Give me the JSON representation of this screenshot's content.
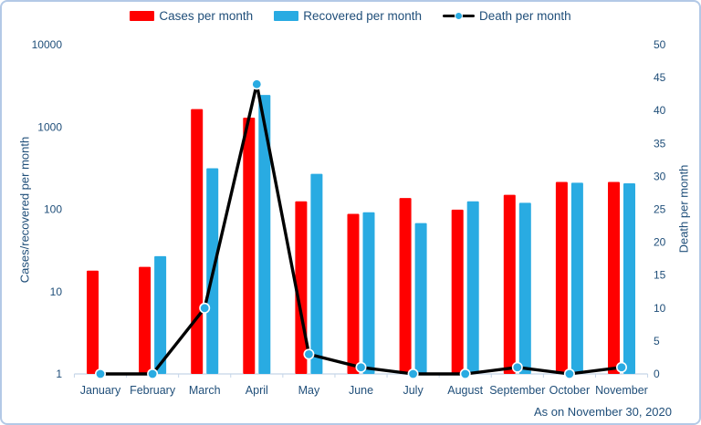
{
  "legend": {
    "items": [
      {
        "label": "Cases per month",
        "swatch": "bar",
        "color": "#ff0000"
      },
      {
        "label": "Recovered per month",
        "swatch": "bar",
        "color": "#29abe2"
      },
      {
        "label": "Death per month",
        "swatch": "line-dot",
        "color": "#000000",
        "dot_color": "#29abe2"
      }
    ]
  },
  "left_axis": {
    "label": "Cases/recovered per month",
    "scale": "log",
    "ticks": [
      1,
      10,
      100,
      1000,
      10000
    ]
  },
  "right_axis": {
    "label": "Death per month",
    "min": 0,
    "max": 50,
    "step": 5
  },
  "footnote": "As on November 30, 2020",
  "colors": {
    "cases": "#ff0000",
    "recovered": "#29abe2",
    "death_line": "#000000",
    "death_marker": "#29abe2",
    "text": "#1f4e79",
    "axis_line": "#c5d5e8",
    "frame_border": "#b3c9e6"
  },
  "chart_data": {
    "type": "bar",
    "subtype": "combo-bar-line-dual-axis",
    "categories": [
      "January",
      "February",
      "March",
      "April",
      "May",
      "June",
      "July",
      "August",
      "September",
      "October",
      "November"
    ],
    "series": [
      {
        "name": "Cases per month",
        "type": "bar",
        "axis": "left",
        "color": "#ff0000",
        "values": [
          18,
          20,
          1650,
          1300,
          125,
          88,
          137,
          99,
          150,
          215,
          215
        ]
      },
      {
        "name": "Recovered per month",
        "type": "bar",
        "axis": "left",
        "color": "#29abe2",
        "values": [
          0,
          27,
          315,
          2450,
          270,
          92,
          68,
          125,
          120,
          210,
          207
        ]
      },
      {
        "name": "Death per month",
        "type": "line",
        "axis": "right",
        "color": "#000000",
        "marker_color": "#29abe2",
        "values": [
          0,
          0,
          10,
          44,
          3,
          1,
          0,
          0,
          1,
          0,
          1
        ]
      }
    ],
    "title": "",
    "xlabel": "",
    "ylabel_left": "Cases/recovered per month",
    "ylabel_right": "Death per month",
    "ylim_left": [
      1,
      10000
    ],
    "ylim_right": [
      0,
      50
    ],
    "left_scale": "log",
    "grid": false,
    "legend_position": "top",
    "annotation": "As on November 30, 2020"
  }
}
